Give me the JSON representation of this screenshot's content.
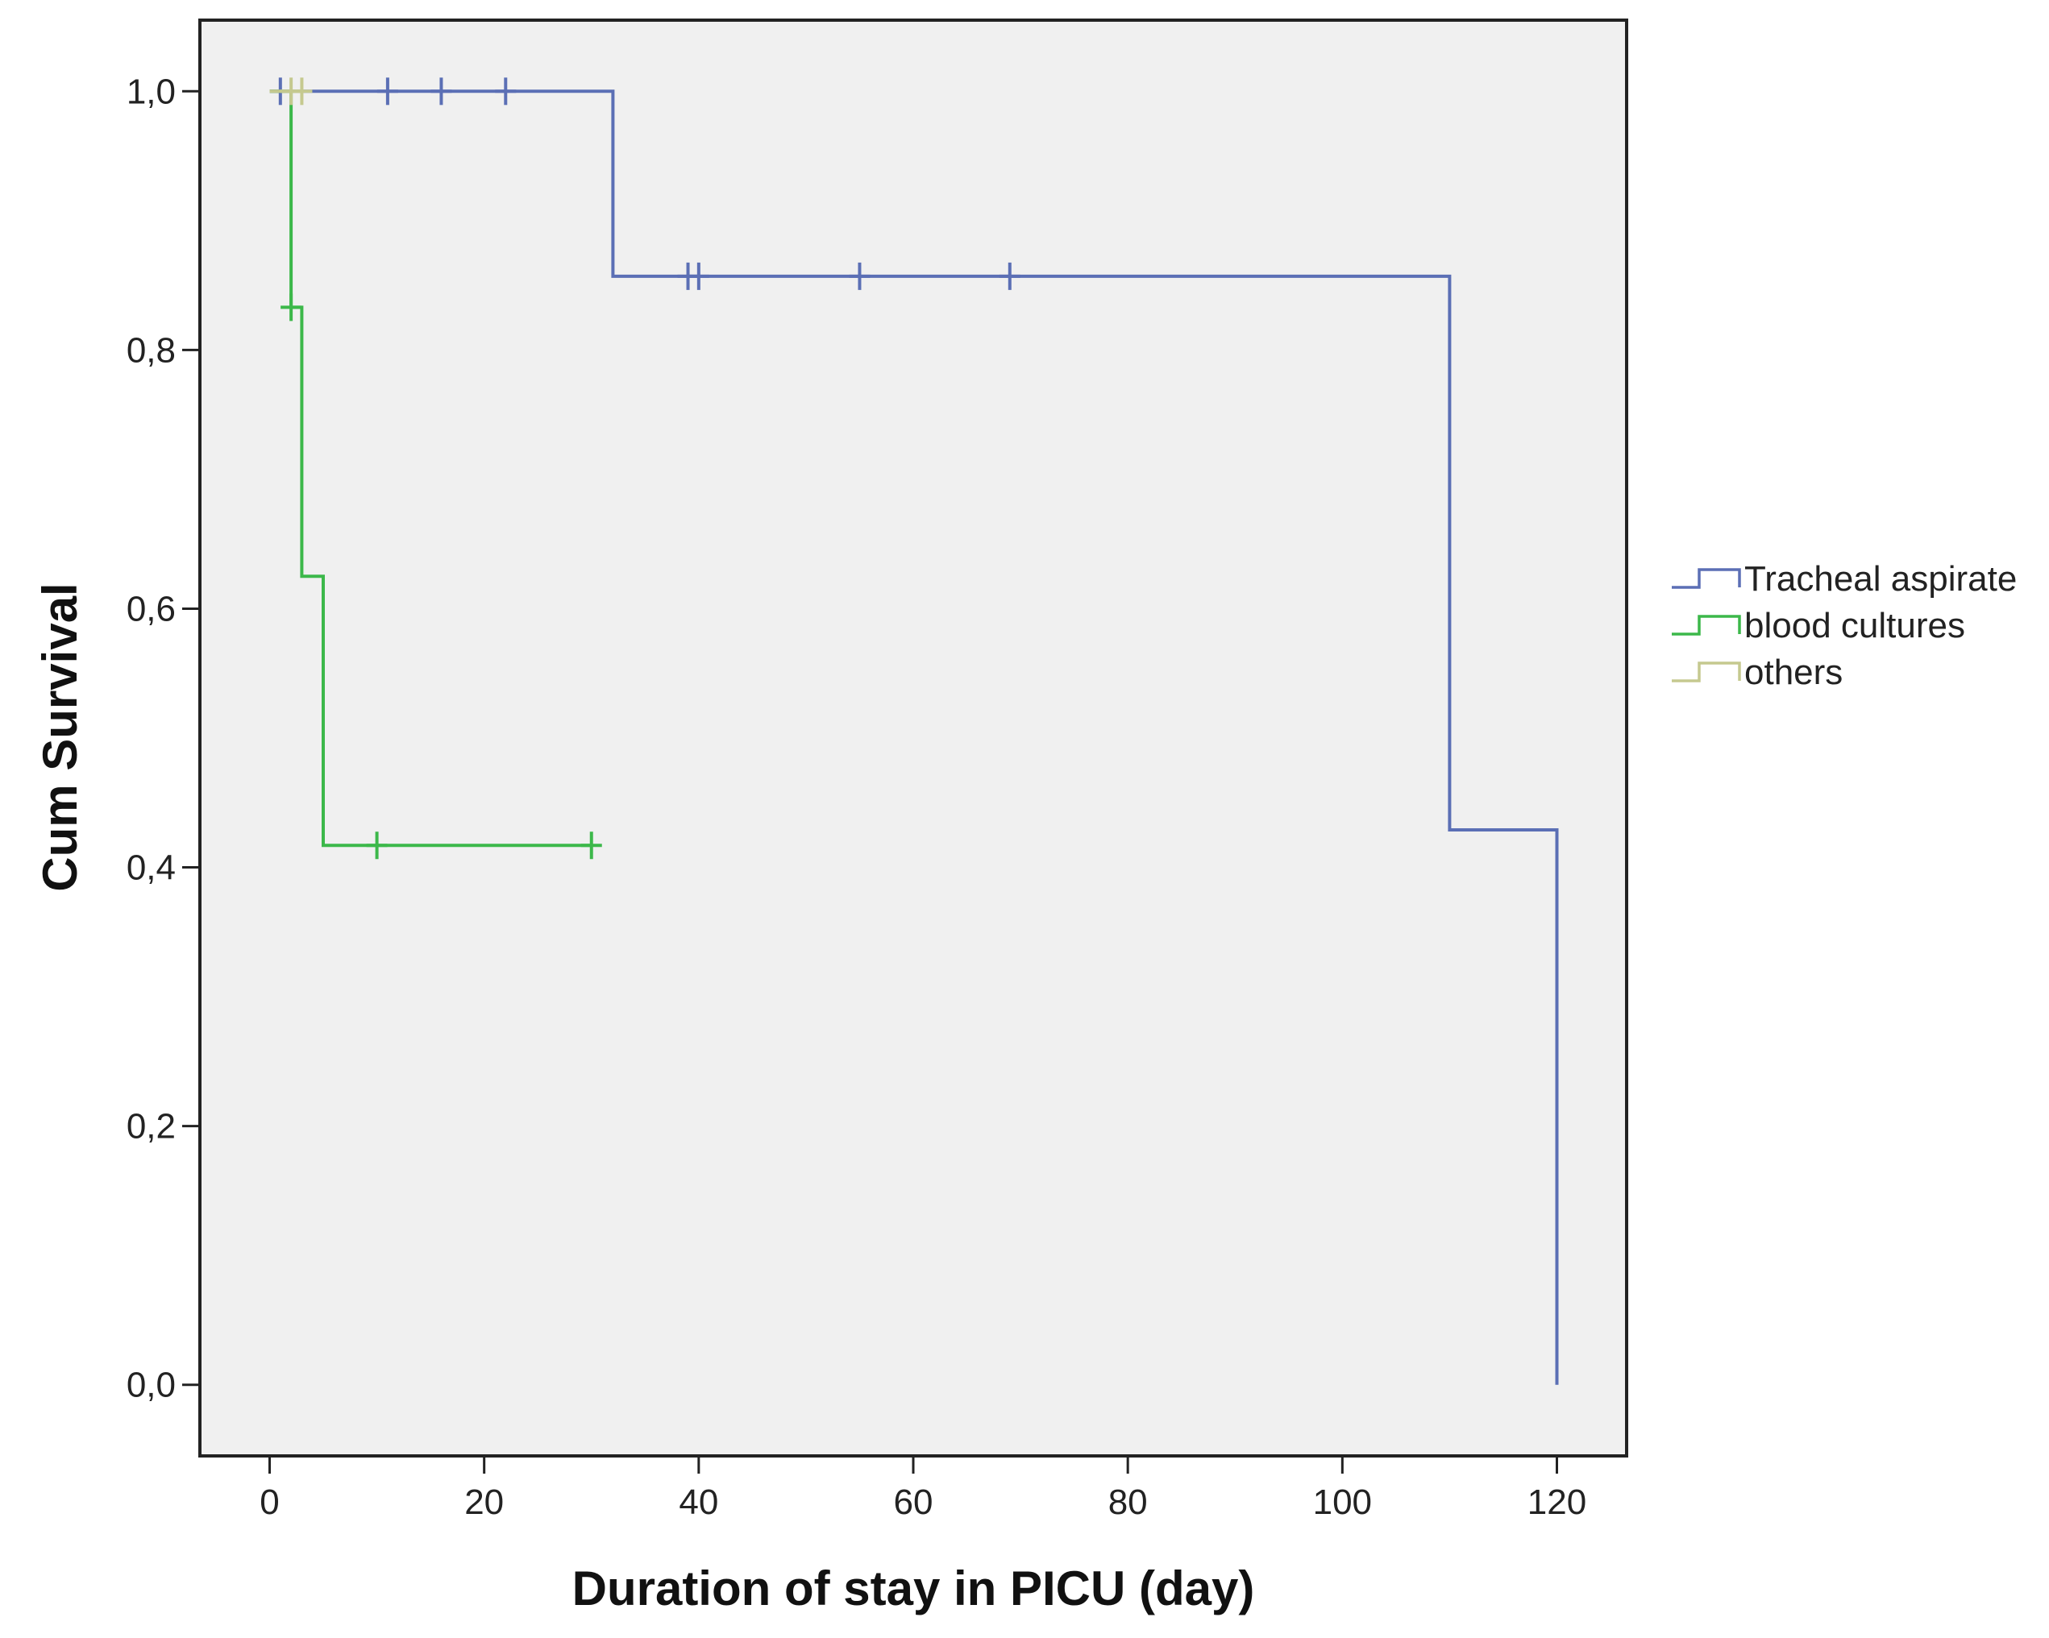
{
  "chart_data": {
    "type": "line",
    "step": true,
    "title": "",
    "xlabel": "Duration of stay in PICU (day)",
    "ylabel": "Cum Survival",
    "xlim": [
      -6.5,
      126.5
    ],
    "ylim": [
      -0.055,
      1.055
    ],
    "xticks": [
      0,
      20,
      40,
      60,
      80,
      100,
      120
    ],
    "xtick_labels": [
      "0",
      "20",
      "40",
      "60",
      "80",
      "100",
      "120"
    ],
    "yticks": [
      0,
      0.2,
      0.4,
      0.6,
      0.8,
      1.0
    ],
    "ytick_labels": [
      "0,0",
      "0,2",
      "0,4",
      "0,6",
      "0,8",
      "1,0"
    ],
    "grid": false,
    "legend_position": "right",
    "plot_background": "#f0f0f0",
    "series": [
      {
        "name": "Tracheal aspirate",
        "color": "#5b6fb5",
        "steps": [
          [
            0,
            1.0
          ],
          [
            32,
            1.0
          ],
          [
            32,
            0.857
          ],
          [
            110,
            0.857
          ],
          [
            110,
            0.429
          ],
          [
            120,
            0.429
          ],
          [
            120,
            0.0
          ]
        ],
        "censored": [
          [
            1,
            1.0
          ],
          [
            11,
            1.0
          ],
          [
            16,
            1.0
          ],
          [
            22,
            1.0
          ],
          [
            39,
            0.857
          ],
          [
            40,
            0.857
          ],
          [
            55,
            0.857
          ],
          [
            69,
            0.857
          ]
        ]
      },
      {
        "name": "blood cultures",
        "color": "#3cb84a",
        "steps": [
          [
            0,
            1.0
          ],
          [
            2,
            1.0
          ],
          [
            2,
            0.833
          ],
          [
            3,
            0.833
          ],
          [
            3,
            0.625
          ],
          [
            5,
            0.625
          ],
          [
            5,
            0.417
          ],
          [
            30,
            0.417
          ]
        ],
        "censored": [
          [
            2,
            0.833
          ],
          [
            10,
            0.417
          ],
          [
            30,
            0.417
          ]
        ]
      },
      {
        "name": "others",
        "color": "#c5c98f",
        "steps": [
          [
            0,
            1.0
          ],
          [
            3,
            1.0
          ]
        ],
        "censored": [
          [
            2,
            1.0
          ],
          [
            3,
            1.0
          ]
        ]
      }
    ]
  }
}
